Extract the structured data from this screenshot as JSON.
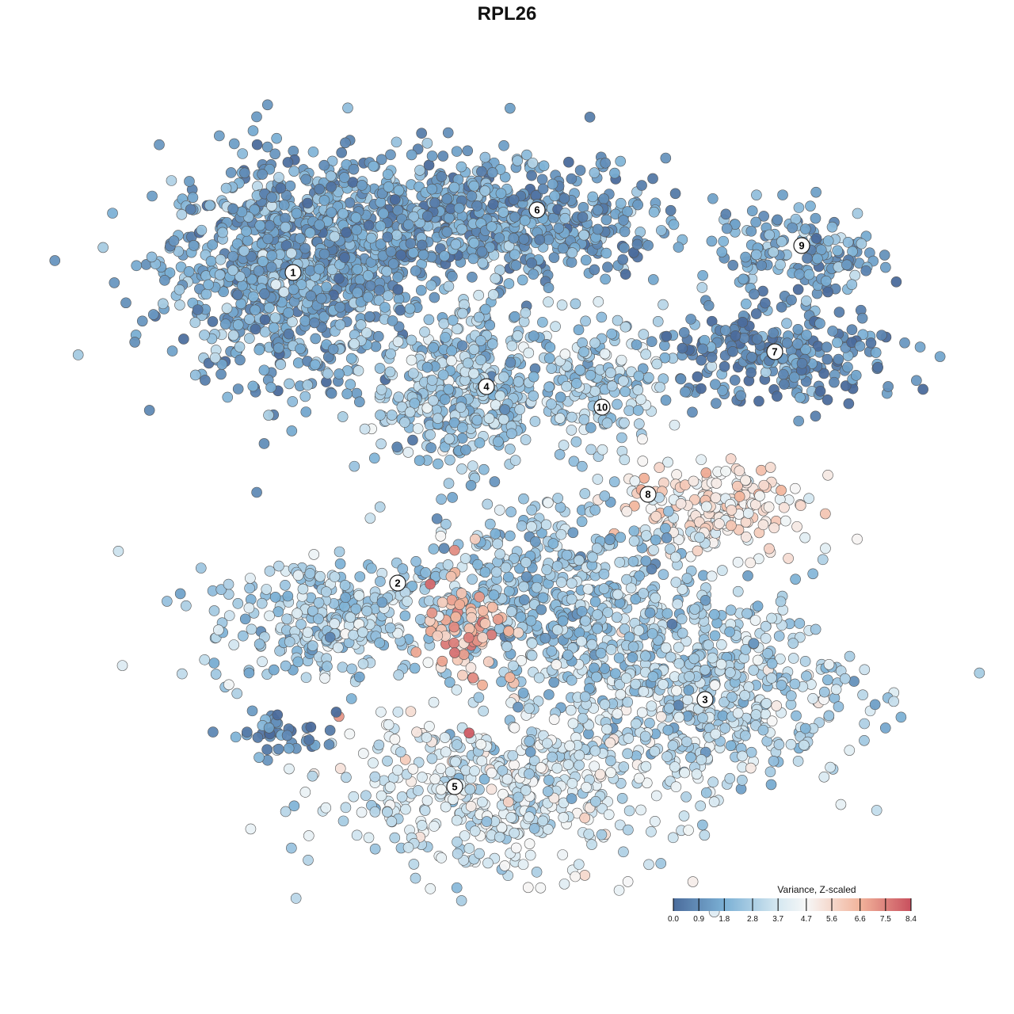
{
  "chart_data": {
    "type": "scatter",
    "title": "RPL26",
    "xlabel": "",
    "ylabel": "",
    "grid": false,
    "axes_visible": false,
    "xlim": [
      -50,
      50
    ],
    "ylim": [
      -50,
      50
    ],
    "point_size_note": "",
    "clusters": [
      {
        "label": "1",
        "center": [
          -27,
          30
        ],
        "spread": [
          8,
          7
        ],
        "n": 900,
        "value": 1.5
      },
      {
        "label": "6",
        "center": [
          -4,
          36
        ],
        "spread": [
          12,
          4
        ],
        "n": 700,
        "value": 1.3
      },
      {
        "label": "9",
        "center": [
          37,
          32
        ],
        "spread": [
          5,
          3
        ],
        "n": 150,
        "value": 1.6
      },
      {
        "label": "7",
        "center": [
          34,
          19
        ],
        "spread": [
          8,
          3
        ],
        "n": 250,
        "value": 0.8
      },
      {
        "label": "4",
        "center": [
          -6,
          15
        ],
        "spread": [
          5.5,
          5
        ],
        "n": 400,
        "value": 2.5
      },
      {
        "label": "10",
        "center": [
          12,
          16
        ],
        "spread": [
          4,
          4
        ],
        "n": 150,
        "value": 2.8
      },
      {
        "label": "8",
        "center": [
          26,
          0
        ],
        "spread": [
          6,
          3
        ],
        "n": 200,
        "value": 5.0
      },
      {
        "label": "2",
        "center": [
          -22,
          -14
        ],
        "spread": [
          8,
          4
        ],
        "n": 300,
        "value": 2.8
      },
      {
        "label": "3",
        "center": [
          24,
          -23
        ],
        "spread": [
          10,
          6
        ],
        "n": 600,
        "value": 3.0
      },
      {
        "label": "5",
        "center": [
          -2,
          -36
        ],
        "spread": [
          11,
          5
        ],
        "n": 500,
        "value": 3.7
      },
      {
        "label": "",
        "center": [
          6,
          -11
        ],
        "spread": [
          9,
          6
        ],
        "n": 500,
        "value": 2.5
      },
      {
        "label": "",
        "center": [
          -5,
          -15
        ],
        "spread": [
          3,
          4
        ],
        "n": 80,
        "value": 6.5
      },
      {
        "label": "",
        "center": [
          -29,
          -28.5
        ],
        "spread": [
          3,
          1.5
        ],
        "n": 40,
        "value": 0.8
      }
    ],
    "cluster_labels": [
      {
        "label": "1",
        "pos": [
          -27,
          29.6
        ]
      },
      {
        "label": "6",
        "pos": [
          3.8,
          37.5
        ]
      },
      {
        "label": "9",
        "pos": [
          37.2,
          33
        ]
      },
      {
        "label": "7",
        "pos": [
          33.8,
          19.6
        ]
      },
      {
        "label": "4",
        "pos": [
          -2.6,
          15.2
        ]
      },
      {
        "label": "10",
        "pos": [
          12,
          12.6
        ]
      },
      {
        "label": "8",
        "pos": [
          17.8,
          1.6
        ]
      },
      {
        "label": "2",
        "pos": [
          -13.8,
          -9.6
        ]
      },
      {
        "label": "3",
        "pos": [
          25,
          -24.3
        ]
      },
      {
        "label": "5",
        "pos": [
          -6.6,
          -35.3
        ]
      }
    ],
    "legend": {
      "title": "Variance, Z-scaled",
      "position": "bottom-right",
      "ticks": [
        "0.0",
        "0.9",
        "1.8",
        "2.8",
        "3.7",
        "4.7",
        "5.6",
        "6.6",
        "7.5",
        "8.4"
      ],
      "range": [
        0,
        8.4
      ]
    },
    "colorscale": [
      {
        "value": 0,
        "color": "#4b6c9c"
      },
      {
        "value": 1.8,
        "color": "#7bb0d5"
      },
      {
        "value": 3.7,
        "color": "#d5e8f1"
      },
      {
        "value": 4.7,
        "color": "#f7f7f7"
      },
      {
        "value": 6.6,
        "color": "#f2b49b"
      },
      {
        "value": 8.4,
        "color": "#c8505e"
      }
    ]
  }
}
